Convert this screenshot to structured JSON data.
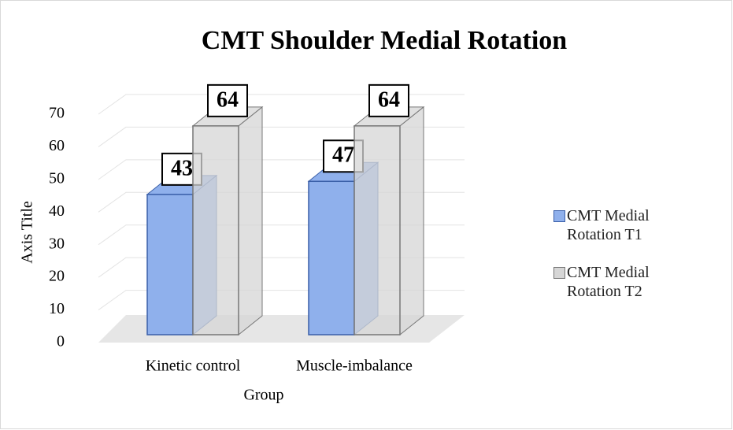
{
  "chart_data": {
    "type": "bar3d",
    "title": "CMT Shoulder Medial Rotation",
    "categories": [
      "Kinetic control",
      "Muscle-imbalance"
    ],
    "series": [
      {
        "name": "CMT Medial Rotation T1",
        "color": "#8fb0ec",
        "values": [
          43,
          47
        ]
      },
      {
        "name": "CMT Medial Rotation T2",
        "color": "#d6d6d6",
        "values": [
          64,
          64
        ]
      }
    ],
    "ylim": [
      0,
      70
    ],
    "yticks": [
      0,
      10,
      20,
      30,
      40,
      50,
      60,
      70
    ],
    "y_axis_label": "Axis Title",
    "x_axis_label": "Group",
    "grid": true,
    "legend": "right"
  }
}
